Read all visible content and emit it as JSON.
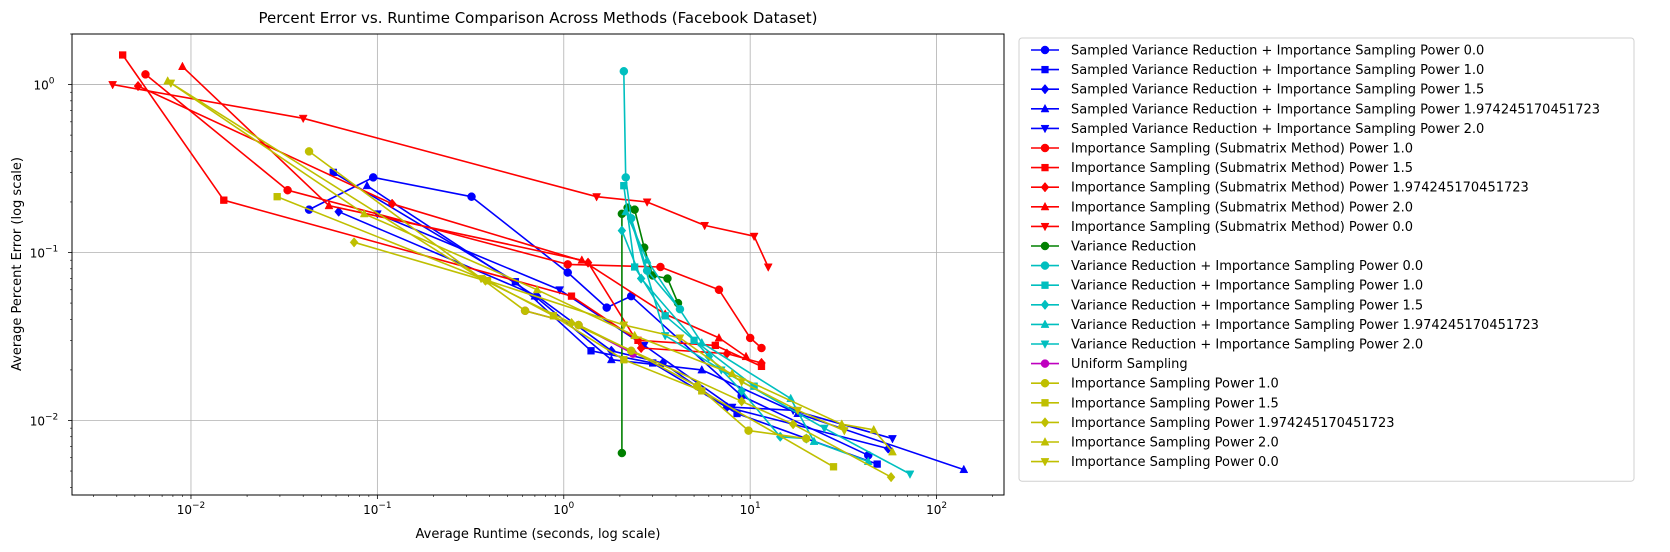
{
  "chart_data": {
    "type": "line",
    "title": "Percent Error vs. Runtime Comparison Across Methods (Facebook Dataset)",
    "xlabel": "Average Runtime (seconds, log scale)",
    "ylabel": "Average Percent Error (log scale)",
    "xscale": "log",
    "yscale": "log",
    "xlim": [
      0.0023,
      230
    ],
    "ylim": [
      0.0036,
      2.0
    ],
    "grid": true,
    "legend_position": "outside-right",
    "x_tick_labels": [
      {
        "value": 0.01,
        "base": "10",
        "exp": "−2"
      },
      {
        "value": 0.1,
        "base": "10",
        "exp": "−1"
      },
      {
        "value": 1,
        "base": "10",
        "exp": "0"
      },
      {
        "value": 10,
        "base": "10",
        "exp": "1"
      },
      {
        "value": 100,
        "base": "10",
        "exp": "2"
      }
    ],
    "y_tick_labels": [
      {
        "value": 0.01,
        "base": "10",
        "exp": "−2"
      },
      {
        "value": 0.1,
        "base": "10",
        "exp": "−1"
      },
      {
        "value": 1,
        "base": "10",
        "exp": "0"
      }
    ],
    "series": [
      {
        "name": "Sampled Variance Reduction + Importance Sampling Power 0.0",
        "color": "#0000ff",
        "marker": "circle",
        "x": [
          0.043,
          0.095,
          0.32,
          1.05,
          1.7,
          2.3,
          9.0,
          43.0
        ],
        "y": [
          0.18,
          0.28,
          0.215,
          0.076,
          0.047,
          0.055,
          0.014,
          0.0062
        ]
      },
      {
        "name": "Sampled Variance Reduction + Importance Sampling Power 1.0",
        "color": "#0000ff",
        "marker": "square",
        "x": [
          0.058,
          0.55,
          1.4,
          3.0,
          8.5,
          48.0
        ],
        "y": [
          0.3,
          0.067,
          0.026,
          0.022,
          0.011,
          0.0055
        ]
      },
      {
        "name": "Sampled Variance Reduction + Importance Sampling Power 1.5",
        "color": "#0000ff",
        "marker": "diamond",
        "x": [
          0.062,
          0.72,
          1.8,
          3.4,
          7.5,
          55.0
        ],
        "y": [
          0.175,
          0.055,
          0.026,
          0.022,
          0.012,
          0.0068
        ]
      },
      {
        "name": "Sampled Variance Reduction + Importance Sampling Power 1.974245170451723",
        "color": "#0000ff",
        "marker": "triangle-up",
        "x": [
          0.088,
          0.7,
          1.8,
          5.5,
          18.0,
          140.0
        ],
        "y": [
          0.25,
          0.055,
          0.023,
          0.02,
          0.011,
          0.0051
        ]
      },
      {
        "name": "Sampled Variance Reduction + Importance Sampling Power 2.0",
        "color": "#0000ff",
        "marker": "triangle-down",
        "x": [
          0.1,
          0.95,
          2.7,
          8.0,
          17.0,
          58.0
        ],
        "y": [
          0.17,
          0.06,
          0.028,
          0.012,
          0.0115,
          0.0078
        ]
      },
      {
        "name": "Importance Sampling (Submatrix Method) Power 1.0",
        "color": "#ff0000",
        "marker": "circle",
        "x": [
          0.0057,
          0.033,
          1.05,
          3.3,
          6.8,
          10.0,
          11.5
        ],
        "y": [
          1.15,
          0.235,
          0.085,
          0.082,
          0.06,
          0.031,
          0.027
        ]
      },
      {
        "name": "Importance Sampling (Submatrix Method) Power 1.5",
        "color": "#ff0000",
        "marker": "square",
        "x": [
          0.0043,
          0.015,
          1.1,
          2.5,
          6.5,
          11.5
        ],
        "y": [
          1.5,
          0.205,
          0.055,
          0.03,
          0.028,
          0.021
        ]
      },
      {
        "name": "Importance Sampling (Submatrix Method) Power 1.974245170451723",
        "color": "#ff0000",
        "marker": "diamond",
        "x": [
          0.0052,
          0.12,
          1.35,
          2.6,
          7.5,
          11.5
        ],
        "y": [
          0.98,
          0.195,
          0.087,
          0.027,
          0.025,
          0.022
        ]
      },
      {
        "name": "Importance Sampling (Submatrix Method) Power 2.0",
        "color": "#ff0000",
        "marker": "triangle-up",
        "x": [
          0.009,
          0.055,
          1.25,
          3.5,
          6.8,
          9.5
        ],
        "y": [
          1.28,
          0.19,
          0.09,
          0.043,
          0.031,
          0.024
        ]
      },
      {
        "name": "Importance Sampling (Submatrix Method) Power 0.0",
        "color": "#ff0000",
        "marker": "triangle-down",
        "x": [
          0.0038,
          0.04,
          1.5,
          2.8,
          5.7,
          10.5,
          12.5
        ],
        "y": [
          1.0,
          0.63,
          0.215,
          0.2,
          0.145,
          0.125,
          0.082
        ]
      },
      {
        "name": "Variance Reduction",
        "color": "#008000",
        "marker": "circle",
        "x": [
          2.05,
          2.05,
          2.2,
          2.4,
          2.7,
          3.0,
          3.6,
          4.1
        ],
        "y": [
          0.0064,
          0.17,
          0.185,
          0.18,
          0.107,
          0.073,
          0.07,
          0.05
        ]
      },
      {
        "name": "Variance Reduction + Importance Sampling Power 0.0",
        "color": "#00bfbf",
        "marker": "circle",
        "x": [
          2.1,
          2.15,
          2.3,
          2.8,
          4.2
        ],
        "y": [
          1.2,
          0.28,
          0.16,
          0.078,
          0.046
        ]
      },
      {
        "name": "Variance Reduction + Importance Sampling Power 1.0",
        "color": "#00bfbf",
        "marker": "square",
        "x": [
          2.1,
          2.4,
          3.5,
          5.0,
          10.5
        ],
        "y": [
          0.25,
          0.082,
          0.042,
          0.03,
          0.016
        ]
      },
      {
        "name": "Variance Reduction + Importance Sampling Power 1.5",
        "color": "#00bfbf",
        "marker": "diamond",
        "x": [
          2.05,
          2.6,
          6.0,
          9.0,
          14.5,
          20.0
        ],
        "y": [
          0.135,
          0.07,
          0.024,
          0.015,
          0.008,
          0.0078
        ]
      },
      {
        "name": "Variance Reduction + Importance Sampling Power 1.974245170451723",
        "color": "#00bfbf",
        "marker": "triangle-up",
        "x": [
          2.15,
          2.8,
          5.5,
          16.5,
          22.0,
          43.0
        ],
        "y": [
          0.175,
          0.09,
          0.029,
          0.0135,
          0.0075,
          0.0057
        ]
      },
      {
        "name": "Variance Reduction + Importance Sampling Power 2.0",
        "color": "#00bfbf",
        "marker": "triangle-down",
        "x": [
          2.3,
          3.5,
          7.0,
          25.0,
          72.0
        ],
        "y": [
          0.155,
          0.032,
          0.02,
          0.009,
          0.0048
        ]
      },
      {
        "name": "Uniform Sampling",
        "color": "#bf00bf",
        "marker": "circle",
        "x": [
          0.62,
          1.2,
          2.35
        ],
        "y": [
          0.045,
          0.037,
          0.025
        ]
      },
      {
        "name": "Importance Sampling Power 1.0",
        "color": "#bfbf00",
        "marker": "circle",
        "x": [
          0.043,
          0.62,
          1.2,
          2.3,
          5.2,
          9.8,
          20.0
        ],
        "y": [
          0.4,
          0.045,
          0.037,
          0.026,
          0.016,
          0.0087,
          0.0078
        ]
      },
      {
        "name": "Importance Sampling Power 1.5",
        "color": "#bfbf00",
        "marker": "square",
        "x": [
          0.029,
          0.39,
          0.88,
          2.1,
          5.5,
          28.0
        ],
        "y": [
          0.215,
          0.068,
          0.042,
          0.023,
          0.015,
          0.0053
        ]
      },
      {
        "name": "Importance Sampling Power 1.974245170451723",
        "color": "#bfbf00",
        "marker": "diamond",
        "x": [
          0.075,
          0.38,
          1.1,
          9.0,
          17.0,
          57.0
        ],
        "y": [
          0.115,
          0.068,
          0.038,
          0.013,
          0.0095,
          0.0046
        ]
      },
      {
        "name": "Importance Sampling Power 2.0",
        "color": "#bfbf00",
        "marker": "triangle-up",
        "x": [
          0.0075,
          0.085,
          0.72,
          2.4,
          8.0,
          31.0,
          46.0,
          58.0
        ],
        "y": [
          1.05,
          0.17,
          0.06,
          0.032,
          0.019,
          0.0095,
          0.0088,
          0.0065
        ]
      },
      {
        "name": "Importance Sampling Power 0.0",
        "color": "#bfbf00",
        "marker": "triangle-down",
        "x": [
          0.0078,
          0.36,
          2.1,
          4.2,
          9.0,
          18.0,
          32.0
        ],
        "y": [
          1.02,
          0.07,
          0.037,
          0.031,
          0.017,
          0.0115,
          0.0087
        ]
      }
    ]
  }
}
